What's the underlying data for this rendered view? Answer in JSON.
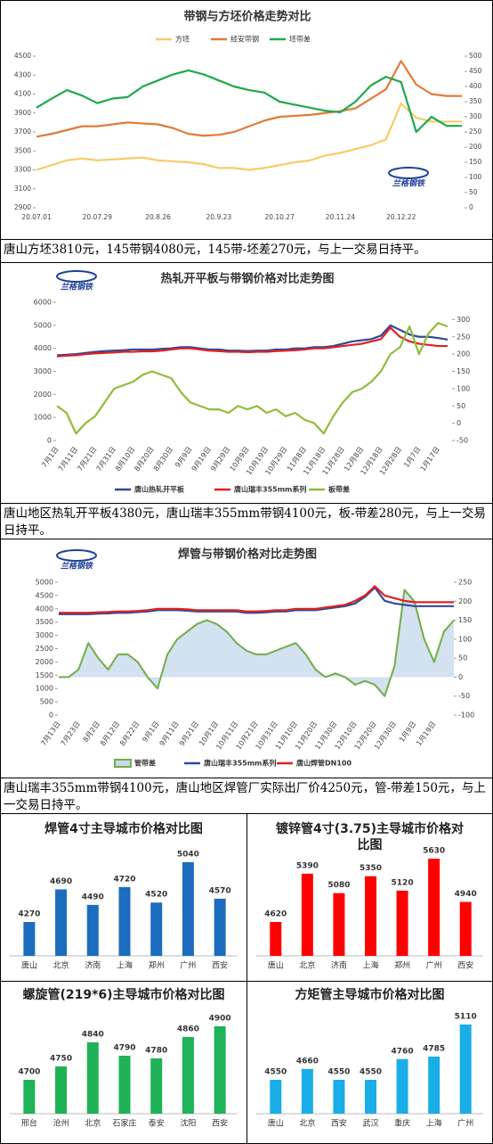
{
  "chart_data": [
    {
      "type": "line",
      "title": "带钢与方坯价格走势对比",
      "logo": "兰格钢铁",
      "legend": "top",
      "categories": [
        "20.07.01",
        null,
        null,
        null,
        "20.07.29",
        null,
        null,
        null,
        "20.8.26",
        null,
        null,
        null,
        "20.9.23",
        null,
        null,
        null,
        "20.10.27",
        null,
        null,
        null,
        "20.11.24",
        null,
        null,
        null,
        "20.12.22",
        null,
        null,
        null,
        null
      ],
      "series": [
        {
          "name": "方坯",
          "color": "#f5cd66",
          "values": [
            3300,
            3350,
            3400,
            3420,
            3400,
            3410,
            3420,
            3430,
            3400,
            3390,
            3380,
            3360,
            3320,
            3320,
            3300,
            3320,
            3350,
            3380,
            3400,
            3450,
            3480,
            3520,
            3560,
            3620,
            4000,
            3850,
            3810,
            3810,
            3810
          ]
        },
        {
          "name": "经安带钢",
          "color": "#e07b3a",
          "values": [
            3650,
            3680,
            3720,
            3760,
            3760,
            3780,
            3800,
            3790,
            3780,
            3740,
            3680,
            3660,
            3670,
            3700,
            3760,
            3820,
            3860,
            3870,
            3880,
            3900,
            3920,
            3950,
            4050,
            4150,
            4450,
            4200,
            4100,
            4080,
            4080
          ]
        },
        {
          "name": "坯带差",
          "color": "#1fa84a",
          "axis": "y2",
          "values": [
            330,
            360,
            388,
            370,
            345,
            360,
            365,
            400,
            420,
            440,
            453,
            440,
            420,
            400,
            388,
            380,
            350,
            340,
            330,
            320,
            315,
            350,
            403,
            432,
            415,
            250,
            300,
            270,
            270
          ]
        }
      ],
      "ylim": [
        2900,
        4500
      ],
      "yticks": [
        2900,
        3100,
        3300,
        3500,
        3700,
        3900,
        4100,
        4300,
        4500
      ],
      "y2lim": [
        0,
        500
      ],
      "y2ticks": [
        0,
        50,
        100,
        150,
        200,
        250,
        300,
        350,
        400,
        450,
        500
      ]
    },
    {
      "type": "line",
      "title": "热轧开平板与带钢价格对比走势图",
      "logo": "兰格钢铁",
      "legend": "bottom",
      "categories": [
        "7月1日",
        null,
        "7月11日",
        null,
        "7月21日",
        null,
        "7月31日",
        null,
        "8月10日",
        null,
        "8月20日",
        null,
        "8月30日",
        null,
        "9月9日",
        null,
        "9月19日",
        null,
        "9月29日",
        null,
        "10月9日",
        null,
        "10月19日",
        null,
        "10月29日",
        null,
        "11月8日",
        null,
        "11月18日",
        null,
        "11月28日",
        null,
        "12月8日",
        null,
        "12月18日",
        null,
        "12月28日",
        null,
        "1月7日",
        null,
        "1月17日",
        null
      ],
      "series": [
        {
          "name": "唐山热轧开平板",
          "color": "#2e4a9a",
          "values": [
            3700,
            3720,
            3750,
            3800,
            3850,
            3880,
            3900,
            3920,
            3950,
            3950,
            3950,
            3980,
            4000,
            4050,
            4050,
            4000,
            3950,
            3950,
            3900,
            3900,
            3880,
            3900,
            3900,
            3950,
            3950,
            4000,
            4000,
            4050,
            4050,
            4100,
            4200,
            4300,
            4350,
            4400,
            4550,
            5000,
            4800,
            4600,
            4500,
            4500,
            4450,
            4380
          ]
        },
        {
          "name": "唐山瑞丰355mm系列",
          "color": "#e02020",
          "values": [
            3650,
            3680,
            3700,
            3750,
            3780,
            3800,
            3820,
            3850,
            3850,
            3870,
            3870,
            3900,
            3950,
            4000,
            4000,
            3950,
            3900,
            3880,
            3850,
            3850,
            3830,
            3850,
            3850,
            3880,
            3900,
            3920,
            3950,
            4000,
            4000,
            4050,
            4100,
            4150,
            4200,
            4300,
            4400,
            4900,
            4500,
            4300,
            4200,
            4150,
            4100,
            4100
          ]
        },
        {
          "name": "板带差",
          "color": "#8fbc3a",
          "axis": "y2",
          "values": [
            50,
            30,
            -30,
            0,
            20,
            60,
            100,
            110,
            120,
            140,
            150,
            140,
            130,
            90,
            60,
            50,
            40,
            40,
            30,
            50,
            40,
            50,
            30,
            40,
            20,
            30,
            10,
            0,
            -30,
            20,
            60,
            90,
            100,
            120,
            150,
            200,
            220,
            280,
            200,
            260,
            290,
            280
          ]
        }
      ],
      "ylim": [
        0,
        6000
      ],
      "yticks": [
        0,
        1000,
        2000,
        3000,
        4000,
        5000,
        6000
      ],
      "y2lim": [
        -50,
        350
      ],
      "y2ticks": [
        -50,
        0,
        50,
        100,
        150,
        200,
        250,
        300
      ]
    },
    {
      "type": "line",
      "title": "焊管与带钢价格对比走势图",
      "logo": "兰格钢铁",
      "legend": "bottom",
      "categories": [
        "7月13日",
        null,
        "7月23日",
        null,
        "8月2日",
        null,
        "8月12日",
        null,
        "8月22日",
        null,
        "9月1日",
        null,
        "9月11日",
        null,
        "9月21日",
        null,
        "10月1日",
        null,
        "10月11日",
        null,
        "10月21日",
        null,
        "10月31日",
        null,
        "11月10日",
        null,
        "11月20日",
        null,
        "11月30日",
        null,
        "12月10日",
        null,
        "12月20日",
        null,
        "12月30日",
        null,
        "1月9日",
        null,
        "1月19日",
        null,
        null
      ],
      "series": [
        {
          "name": "管带差",
          "color": "#70ad47",
          "fill": "#c9d9ec",
          "axis": "y2",
          "values": [
            0,
            0,
            20,
            90,
            50,
            20,
            60,
            60,
            40,
            0,
            -30,
            60,
            100,
            120,
            140,
            150,
            140,
            120,
            90,
            70,
            60,
            60,
            70,
            80,
            90,
            60,
            20,
            0,
            10,
            0,
            -20,
            -10,
            -20,
            -50,
            30,
            230,
            200,
            100,
            40,
            120,
            150
          ]
        },
        {
          "name": "唐山瑞丰355mm系列",
          "color": "#2e4a9a",
          "values": [
            3800,
            3800,
            3800,
            3800,
            3820,
            3830,
            3850,
            3850,
            3880,
            3900,
            3950,
            3950,
            3950,
            3930,
            3900,
            3900,
            3900,
            3900,
            3900,
            3850,
            3850,
            3870,
            3900,
            3900,
            3950,
            3950,
            3950,
            4000,
            4050,
            4100,
            4200,
            4450,
            4800,
            4300,
            4200,
            4150,
            4100,
            4100,
            4100,
            4100,
            4100
          ]
        },
        {
          "name": "唐山焊管DN100",
          "color": "#e02020",
          "values": [
            3850,
            3850,
            3850,
            3850,
            3870,
            3880,
            3900,
            3900,
            3920,
            3950,
            4000,
            4000,
            4000,
            3980,
            3950,
            3950,
            3950,
            3950,
            3950,
            3900,
            3900,
            3920,
            3950,
            3950,
            4000,
            4000,
            4000,
            4050,
            4100,
            4150,
            4300,
            4500,
            4850,
            4500,
            4400,
            4300,
            4250,
            4250,
            4250,
            4250,
            4250
          ]
        }
      ],
      "ylim": [
        0,
        5000
      ],
      "yticks": [
        0,
        500,
        1000,
        1500,
        2000,
        2500,
        3000,
        3500,
        4000,
        4500,
        5000
      ],
      "y2lim": [
        -100,
        250
      ],
      "y2ticks": [
        -100,
        -50,
        0,
        50,
        100,
        150,
        200,
        250
      ]
    },
    {
      "type": "bar",
      "title": "焊管4寸主导城市价格对比图",
      "color": "#1c6cbf",
      "categories": [
        "唐山",
        "北京",
        "济南",
        "上海",
        "郑州",
        "广州",
        "西安"
      ],
      "values": [
        4270,
        4690,
        4490,
        4720,
        4520,
        5040,
        4570
      ]
    },
    {
      "type": "bar",
      "title": "镀锌管4寸(3.75)主导城市价格对比图",
      "color": "#ff0000",
      "categories": [
        "唐山",
        "北京",
        "济南",
        "上海",
        "郑州",
        "广州",
        "西安"
      ],
      "values": [
        4620,
        5390,
        5080,
        5350,
        5120,
        5630,
        4940
      ]
    },
    {
      "type": "bar",
      "title": "螺旋管(219*6)主导城市价格对比图",
      "color": "#1fb257",
      "categories": [
        "邢台",
        "沧州",
        "北京",
        "石家庄",
        "泰安",
        "沈阳",
        "西安"
      ],
      "values": [
        4700,
        4750,
        4840,
        4790,
        4780,
        4860,
        4900
      ]
    },
    {
      "type": "bar",
      "title": "方矩管主导城市价格对比图",
      "color": "#1aaee8",
      "categories": [
        "唐山",
        "北京",
        "西安",
        "武汉",
        "重庆",
        "上海",
        "广州"
      ],
      "values": [
        4550,
        4660,
        4550,
        4550,
        4760,
        4785,
        5110
      ]
    }
  ],
  "captions": [
    "唐山方坯3810元，145带钢4080元，145带-坯差270元，与上一交易日持平。",
    "唐山地区热轧开平板4380元，唐山瑞丰355mm带钢4100元，板-带差280元，与上一交易日持平。",
    "唐山瑞丰355mm带钢4100元，唐山地区焊管厂实际出厂价4250元，管-带差150元，与上一交易日持平。"
  ]
}
